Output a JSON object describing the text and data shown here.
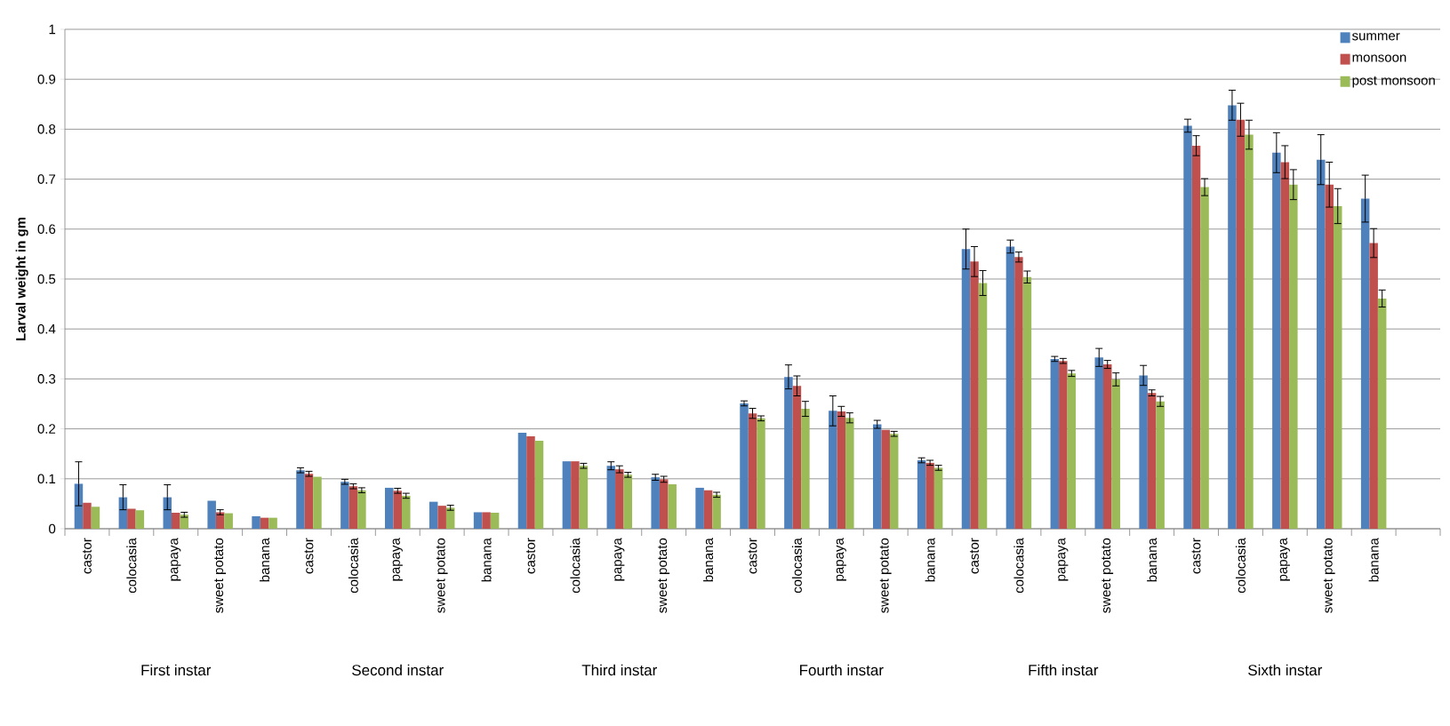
{
  "chart_data": {
    "type": "bar",
    "ylabel": "Larval weight in gm",
    "categories": [
      "castor",
      "colocasia",
      "papaya",
      "sweet potato",
      "banana",
      "castor",
      "colocasia",
      "papaya",
      "sweet potato",
      "banana",
      "castor",
      "colocasia",
      "papaya",
      "sweet potato",
      "banana",
      "castor",
      "colocasia",
      "papaya",
      "sweet potato",
      "banana",
      "castor",
      "colocasia",
      "papaya",
      "sweet potato",
      "banana",
      "castor",
      "colocasia",
      "papaya",
      "sweet potato",
      "banana",
      null
    ],
    "series": [
      {
        "name": "summer",
        "color": "#4f81bd",
        "values": [
          0.09,
          0.063,
          0.063,
          0.056,
          0.025,
          0.117,
          0.094,
          0.082,
          0.054,
          0.033,
          0.192,
          0.135,
          0.126,
          0.103,
          0.082,
          0.251,
          0.304,
          0.236,
          0.209,
          0.137,
          0.56,
          0.565,
          0.34,
          0.343,
          0.307,
          0.807,
          0.848,
          0.753,
          0.739,
          0.661,
          null
        ],
        "errors": [
          0.044,
          0.025,
          0.025,
          null,
          null,
          0.005,
          0.005,
          null,
          null,
          null,
          null,
          null,
          0.008,
          0.006,
          null,
          0.005,
          0.024,
          0.03,
          0.008,
          0.005,
          0.04,
          0.013,
          0.005,
          0.018,
          0.02,
          0.013,
          0.03,
          0.04,
          0.05,
          0.047,
          null
        ]
      },
      {
        "name": "monsoon",
        "color": "#c0504d",
        "values": [
          0.052,
          0.04,
          0.032,
          0.033,
          0.022,
          0.11,
          0.085,
          0.076,
          0.046,
          0.033,
          0.185,
          0.135,
          0.119,
          0.099,
          0.077,
          0.231,
          0.286,
          0.235,
          0.198,
          0.132,
          0.535,
          0.544,
          0.336,
          0.329,
          0.272,
          0.767,
          0.819,
          0.734,
          0.689,
          0.572,
          null
        ],
        "errors": [
          null,
          null,
          null,
          0.005,
          null,
          0.005,
          0.005,
          0.005,
          null,
          null,
          null,
          null,
          0.007,
          0.006,
          null,
          0.01,
          0.02,
          0.01,
          null,
          0.005,
          0.03,
          0.01,
          0.005,
          0.008,
          0.006,
          0.02,
          0.033,
          0.033,
          0.045,
          0.029,
          null
        ]
      },
      {
        "name": "post monsoon",
        "color": "#9bbb59",
        "values": [
          0.044,
          0.037,
          0.028,
          0.031,
          0.022,
          0.104,
          0.077,
          0.066,
          0.042,
          0.032,
          0.176,
          0.126,
          0.108,
          0.089,
          0.068,
          0.221,
          0.24,
          0.222,
          0.19,
          0.122,
          0.492,
          0.504,
          0.311,
          0.299,
          0.255,
          0.684,
          0.789,
          0.689,
          0.646,
          0.461,
          null
        ],
        "errors": [
          null,
          null,
          0.005,
          null,
          null,
          null,
          0.005,
          0.005,
          0.005,
          null,
          null,
          0.005,
          0.005,
          null,
          0.005,
          0.005,
          0.015,
          0.01,
          0.005,
          0.005,
          0.025,
          0.012,
          0.006,
          0.013,
          0.01,
          0.017,
          0.029,
          0.03,
          0.035,
          0.017,
          null
        ]
      }
    ],
    "ylim": [
      0,
      1
    ],
    "yticks": [
      0,
      0.1,
      0.2,
      0.3,
      0.4,
      0.5,
      0.6,
      0.7,
      0.8,
      0.9,
      1
    ],
    "grid": "y",
    "legend": "top right",
    "annotations": [
      "First instar",
      "Second instar",
      "Third instar",
      "Fourth instar",
      "Fifth instar",
      "Sixth instar"
    ]
  }
}
